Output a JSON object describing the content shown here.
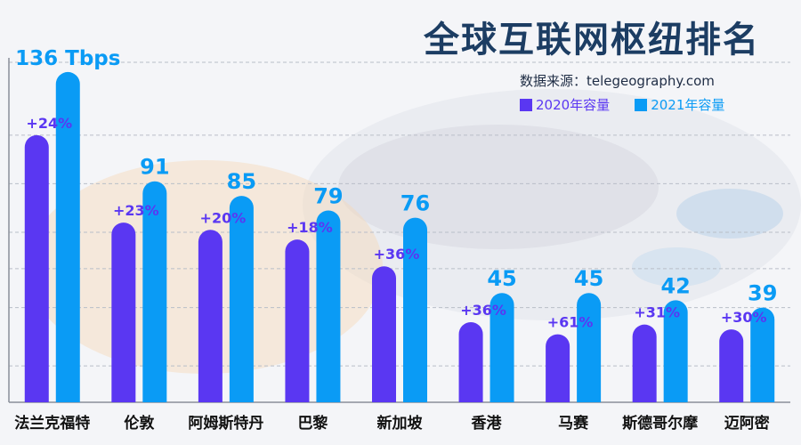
{
  "title": "全球互联网枢纽排名",
  "legend": {
    "source": "数据来源：telegeography.com",
    "series_2020": "2020年容量",
    "series_2021": "2021年容量"
  },
  "colors": {
    "series_2020": "#5a37f2",
    "series_2021": "#0a9bf5",
    "title": "#1c3d63"
  },
  "chart_data": {
    "type": "bar",
    "title": "全球互联网枢纽排名",
    "categories": [
      "法兰克福特",
      "伦敦",
      "阿姆斯特丹",
      "巴黎",
      "新加坡",
      "香港",
      "马赛",
      "斯德哥尔摩",
      "迈阿密"
    ],
    "series": [
      {
        "name": "2020年容量",
        "values": [
          110,
          74,
          71,
          67,
          56,
          33,
          28,
          32,
          30
        ]
      },
      {
        "name": "2021年容量",
        "values": [
          136,
          91,
          85,
          79,
          76,
          45,
          45,
          42,
          39
        ]
      }
    ],
    "value_labels_2021": [
      "136 Tbps",
      "91",
      "85",
      "79",
      "76",
      "45",
      "45",
      "42",
      "39"
    ],
    "growth_labels": [
      "+24%",
      "+23%",
      "+20%",
      "+18%",
      "+36%",
      "+36%",
      "+61%",
      "+31%",
      "+30%"
    ],
    "ylim": [
      0,
      140
    ],
    "grid": true,
    "legend_position": "top-right"
  }
}
